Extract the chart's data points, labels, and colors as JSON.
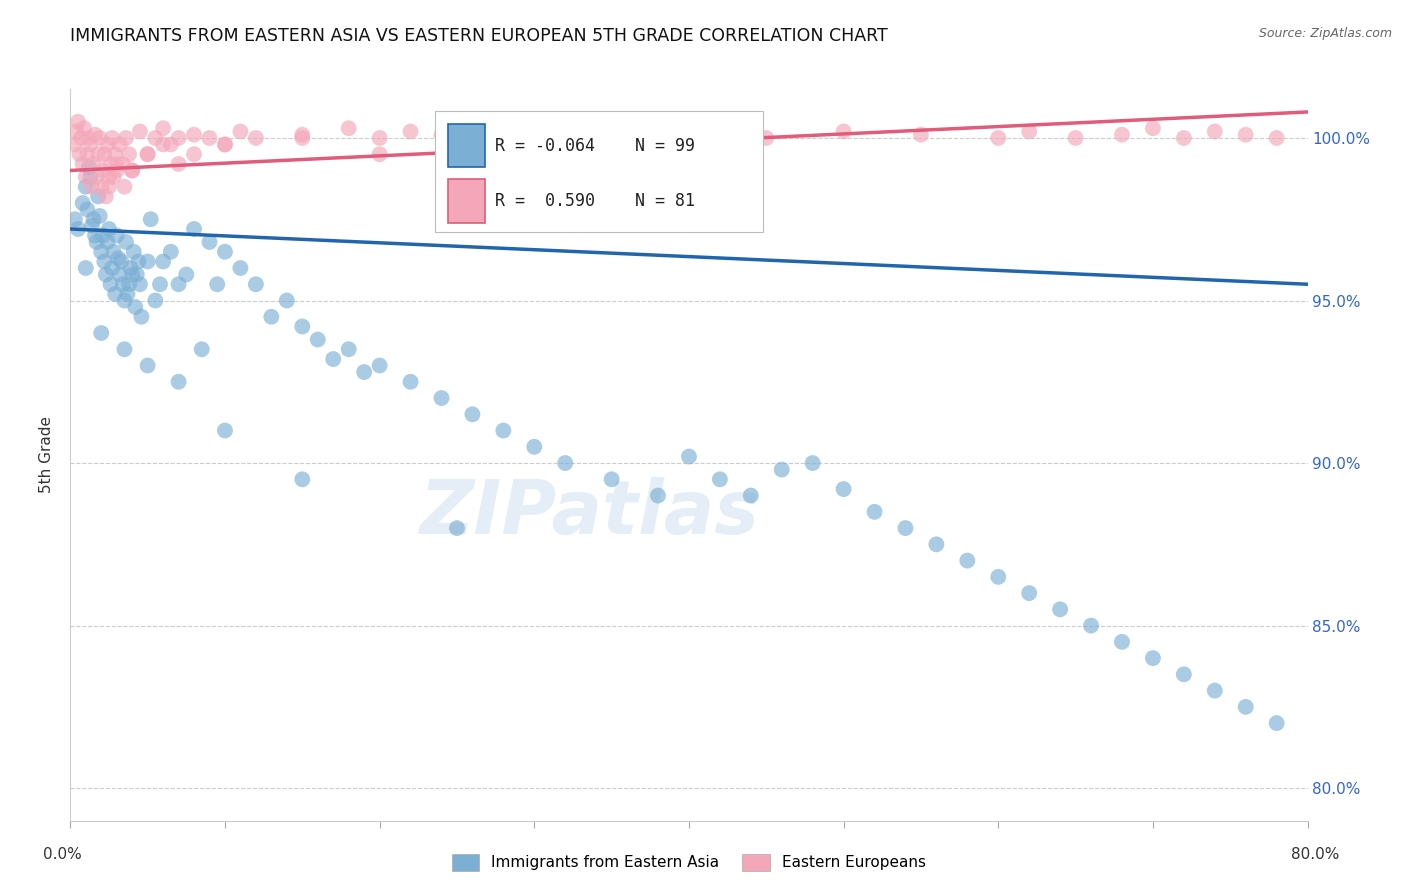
{
  "title": "IMMIGRANTS FROM EASTERN ASIA VS EASTERN EUROPEAN 5TH GRADE CORRELATION CHART",
  "source": "Source: ZipAtlas.com",
  "ylabel": "5th Grade",
  "yticks": [
    80.0,
    85.0,
    90.0,
    95.0,
    100.0
  ],
  "xlim": [
    0.0,
    80.0
  ],
  "ylim": [
    79.0,
    101.5
  ],
  "blue_R": "-0.064",
  "blue_N": "99",
  "pink_R": "0.590",
  "pink_N": "81",
  "blue_color": "#7bafd4",
  "pink_color": "#f4a7b9",
  "blue_line_color": "#2166ac",
  "pink_line_color": "#e05c7a",
  "legend_label_blue": "Immigrants from Eastern Asia",
  "legend_label_pink": "Eastern Europeans",
  "watermark": "ZIPatlas",
  "blue_scatter_x": [
    0.3,
    0.5,
    0.8,
    1.0,
    1.1,
    1.2,
    1.3,
    1.4,
    1.5,
    1.6,
    1.7,
    1.8,
    1.9,
    2.0,
    2.1,
    2.2,
    2.3,
    2.4,
    2.5,
    2.6,
    2.7,
    2.8,
    2.9,
    3.0,
    3.1,
    3.2,
    3.3,
    3.4,
    3.5,
    3.6,
    3.7,
    3.8,
    3.9,
    4.0,
    4.1,
    4.2,
    4.3,
    4.4,
    4.5,
    4.6,
    5.0,
    5.2,
    5.5,
    5.8,
    6.0,
    6.5,
    7.0,
    7.5,
    8.0,
    8.5,
    9.0,
    9.5,
    10.0,
    11.0,
    12.0,
    13.0,
    14.0,
    15.0,
    16.0,
    17.0,
    18.0,
    19.0,
    20.0,
    22.0,
    24.0,
    26.0,
    28.0,
    30.0,
    32.0,
    35.0,
    38.0,
    40.0,
    42.0,
    44.0,
    46.0,
    48.0,
    50.0,
    52.0,
    54.0,
    56.0,
    58.0,
    60.0,
    62.0,
    64.0,
    66.0,
    68.0,
    70.0,
    72.0,
    74.0,
    76.0,
    78.0,
    1.0,
    2.0,
    3.5,
    5.0,
    7.0,
    10.0,
    15.0,
    25.0
  ],
  "blue_scatter_y": [
    97.5,
    97.2,
    98.0,
    98.5,
    97.8,
    99.1,
    98.8,
    97.3,
    97.5,
    97.0,
    96.8,
    98.2,
    97.6,
    96.5,
    97.0,
    96.2,
    95.8,
    96.8,
    97.2,
    95.5,
    96.0,
    96.5,
    95.2,
    97.0,
    96.3,
    95.8,
    96.2,
    95.5,
    95.0,
    96.8,
    95.2,
    95.5,
    96.0,
    95.8,
    96.5,
    94.8,
    95.8,
    96.2,
    95.5,
    94.5,
    96.2,
    97.5,
    95.0,
    95.5,
    96.2,
    96.5,
    95.5,
    95.8,
    97.2,
    93.5,
    96.8,
    95.5,
    96.5,
    96.0,
    95.5,
    94.5,
    95.0,
    94.2,
    93.8,
    93.2,
    93.5,
    92.8,
    93.0,
    92.5,
    92.0,
    91.5,
    91.0,
    90.5,
    90.0,
    89.5,
    89.0,
    90.2,
    89.5,
    89.0,
    89.8,
    90.0,
    89.2,
    88.5,
    88.0,
    87.5,
    87.0,
    86.5,
    86.0,
    85.5,
    85.0,
    84.5,
    84.0,
    83.5,
    83.0,
    82.5,
    82.0,
    96.0,
    94.0,
    93.5,
    93.0,
    92.5,
    91.0,
    89.5,
    88.0
  ],
  "pink_scatter_x": [
    0.3,
    0.4,
    0.5,
    0.6,
    0.7,
    0.8,
    0.9,
    1.0,
    1.1,
    1.2,
    1.3,
    1.4,
    1.5,
    1.6,
    1.7,
    1.8,
    1.9,
    2.0,
    2.1,
    2.2,
    2.3,
    2.4,
    2.5,
    2.6,
    2.7,
    2.8,
    2.9,
    3.0,
    3.2,
    3.4,
    3.6,
    3.8,
    4.0,
    4.5,
    5.0,
    5.5,
    6.0,
    6.5,
    7.0,
    8.0,
    9.0,
    10.0,
    11.0,
    12.0,
    15.0,
    18.0,
    20.0,
    22.0,
    24.0,
    26.0,
    28.0,
    30.0,
    35.0,
    40.0,
    45.0,
    50.0,
    55.0,
    60.0,
    62.0,
    65.0,
    68.0,
    70.0,
    72.0,
    74.0,
    76.0,
    78.0,
    2.5,
    3.0,
    3.5,
    4.0,
    5.0,
    6.0,
    7.0,
    8.0,
    10.0,
    15.0,
    20.0,
    25.0,
    30.0,
    35.0,
    40.0
  ],
  "pink_scatter_y": [
    99.8,
    100.2,
    100.5,
    99.5,
    100.0,
    99.2,
    100.3,
    98.8,
    99.5,
    100.0,
    99.8,
    98.5,
    99.2,
    100.1,
    98.8,
    99.5,
    100.0,
    98.5,
    99.0,
    99.5,
    98.2,
    99.8,
    98.5,
    99.2,
    100.0,
    98.8,
    99.5,
    99.0,
    99.8,
    99.2,
    100.0,
    99.5,
    99.0,
    100.2,
    99.5,
    100.0,
    100.3,
    99.8,
    100.0,
    100.1,
    100.0,
    99.8,
    100.2,
    100.0,
    100.1,
    100.3,
    100.0,
    100.2,
    100.1,
    100.0,
    100.2,
    100.3,
    100.0,
    100.1,
    100.0,
    100.2,
    100.1,
    100.0,
    100.2,
    100.0,
    100.1,
    100.3,
    100.0,
    100.2,
    100.1,
    100.0,
    98.8,
    99.2,
    98.5,
    99.0,
    99.5,
    99.8,
    99.2,
    99.5,
    99.8,
    100.0,
    99.5,
    99.8,
    100.0,
    99.2,
    99.5
  ],
  "blue_trendline_x": [
    0.0,
    80.0
  ],
  "blue_trendline_y": [
    97.2,
    95.5
  ],
  "pink_trendline_x": [
    0.0,
    80.0
  ],
  "pink_trendline_y": [
    99.0,
    100.8
  ]
}
